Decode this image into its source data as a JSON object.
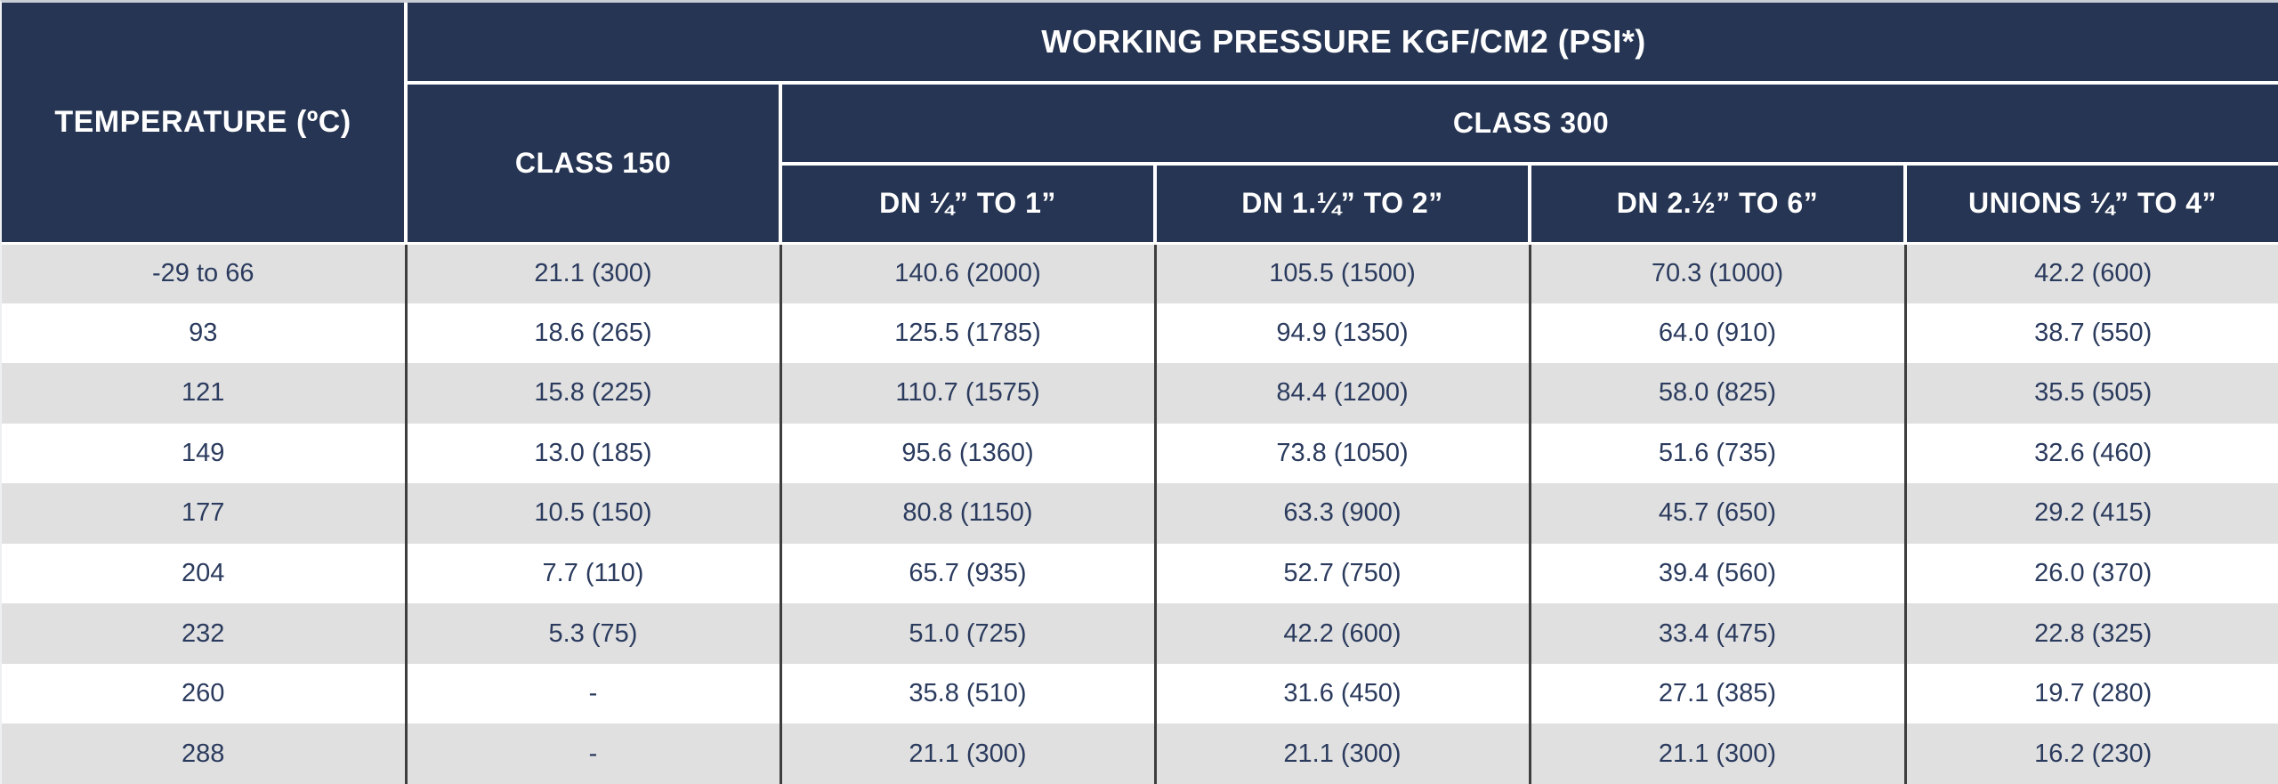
{
  "chart_data": {
    "type": "table",
    "title": "WORKING PRESSURE KGF/CM2 (PSI*)",
    "column_groups": {
      "temperature": "TEMPERATURE (ºC)",
      "working_pressure": "WORKING PRESSURE KGF/CM2 (PSI*)",
      "class150": "CLASS 150",
      "class300": "CLASS 300",
      "class300_subcolumns": [
        "DN ¼” TO 1”",
        "DN 1.¼” TO 2”",
        "DN 2.½” TO 6”",
        "UNIONS ¼” TO 4”"
      ]
    },
    "rows": [
      [
        "-29 to 66",
        "21.1 (300)",
        "140.6 (2000)",
        "105.5 (1500)",
        "70.3 (1000)",
        "42.2 (600)"
      ],
      [
        "93",
        "18.6 (265)",
        "125.5 (1785)",
        "94.9 (1350)",
        "64.0 (910)",
        "38.7 (550)"
      ],
      [
        "121",
        "15.8 (225)",
        "110.7 (1575)",
        "84.4 (1200)",
        "58.0 (825)",
        "35.5 (505)"
      ],
      [
        "149",
        "13.0 (185)",
        "95.6 (1360)",
        "73.8 (1050)",
        "51.6 (735)",
        "32.6 (460)"
      ],
      [
        "177",
        "10.5 (150)",
        "80.8 (1150)",
        "63.3 (900)",
        "45.7 (650)",
        "29.2 (415)"
      ],
      [
        "204",
        "7.7 (110)",
        "65.7 (935)",
        "52.7 (750)",
        "39.4 (560)",
        "26.0 (370)"
      ],
      [
        "232",
        "5.3 (75)",
        "51.0 (725)",
        "42.2 (600)",
        "33.4 (475)",
        "22.8 (325)"
      ],
      [
        "260",
        "-",
        "35.8 (510)",
        "31.6 (450)",
        "27.1 (385)",
        "19.7 (280)"
      ],
      [
        "288",
        "-",
        "21.1 (300)",
        "21.1 (300)",
        "21.1 (300)",
        "16.2 (230)"
      ]
    ],
    "colors": {
      "header_background": "#263553",
      "header_text": "#ffffff",
      "stripe_row": "#e0e0e0",
      "plain_row": "#ffffff",
      "data_text": "#2b3b5e",
      "column_rule": "#3e3e3e",
      "header_rule": "#ffffff"
    },
    "layout": {
      "header_rows": 3,
      "data_rows": 9,
      "columns": 6,
      "stripe_pattern": "first data row shaded, alternating"
    }
  }
}
